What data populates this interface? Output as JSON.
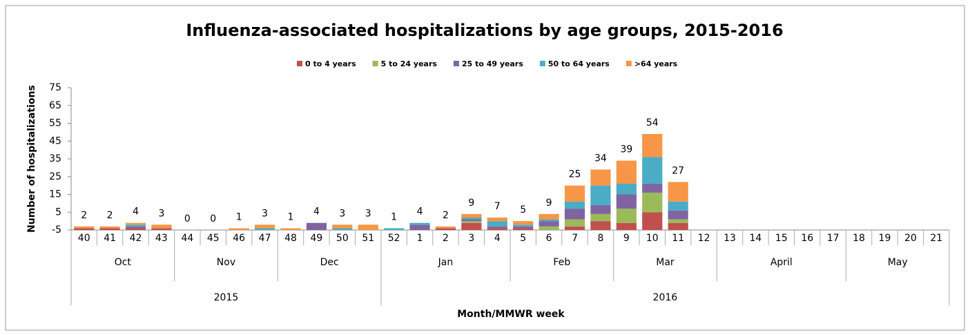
{
  "chart_data": {
    "type": "bar",
    "stacked": true,
    "title": "Influenza-associated hospitalizations by age groups, 2015-2016",
    "y_label": "Number of hospitalizations",
    "x_label": "Month/MMWR week",
    "categories": [
      "40",
      "41",
      "42",
      "43",
      "44",
      "45",
      "46",
      "47",
      "48",
      "49",
      "50",
      "51",
      "52",
      "1",
      "2",
      "3",
      "4",
      "5",
      "6",
      "7",
      "8",
      "9",
      "10",
      "11",
      "12",
      "13",
      "14",
      "15",
      "16",
      "17",
      "18",
      "19",
      "20",
      "21"
    ],
    "months": [
      "Oct",
      "Oct",
      "Oct",
      "Oct",
      "Nov",
      "Nov",
      "Nov",
      "Nov",
      "Dec",
      "Dec",
      "Dec",
      "Dec",
      "Jan",
      "Jan",
      "Jan",
      "Jan",
      "Jan",
      "Feb",
      "Feb",
      "Feb",
      "Feb",
      "Mar",
      "Mar",
      "Mar",
      "Mar",
      "April",
      "April",
      "April",
      "April",
      "April",
      "May",
      "May",
      "May",
      "May"
    ],
    "years": [
      "2015",
      "2015",
      "2015",
      "2015",
      "2015",
      "2015",
      "2015",
      "2015",
      "2015",
      "2015",
      "2015",
      "2015",
      "2016",
      "2016",
      "2016",
      "2016",
      "2016",
      "2016",
      "2016",
      "2016",
      "2016",
      "2016",
      "2016",
      "2016",
      "2016",
      "2016",
      "2016",
      "2016",
      "2016",
      "2016",
      "2016",
      "2016",
      "2016",
      "2016"
    ],
    "series": [
      {
        "name": "0 to 4 years",
        "color": "#c0504d",
        "values": [
          1,
          1,
          1,
          1,
          0,
          0,
          0,
          0,
          0,
          0,
          0,
          0,
          0,
          0,
          1,
          4,
          1,
          1,
          0,
          2,
          5,
          4,
          10,
          4,
          0,
          0,
          0,
          0,
          0,
          0,
          0,
          0,
          0,
          0
        ]
      },
      {
        "name": "5 to 24 years",
        "color": "#9bbb59",
        "values": [
          0,
          0,
          0,
          0,
          0,
          0,
          0,
          0,
          0,
          0,
          0,
          0,
          0,
          0,
          0,
          1,
          0,
          0,
          2,
          4,
          4,
          8,
          11,
          2,
          0,
          0,
          0,
          0,
          0,
          0,
          0,
          0,
          0,
          0
        ]
      },
      {
        "name": "25 to 49 years",
        "color": "#8064a2",
        "values": [
          0,
          0,
          1,
          0,
          0,
          0,
          0,
          0,
          0,
          4,
          0,
          0,
          0,
          3,
          0,
          1,
          1,
          1,
          3,
          6,
          5,
          8,
          5,
          5,
          0,
          0,
          0,
          0,
          0,
          0,
          0,
          0,
          0,
          0
        ]
      },
      {
        "name": "50 to 64 years",
        "color": "#4bacc6",
        "values": [
          0,
          0,
          1,
          0,
          0,
          0,
          0,
          1,
          0,
          0,
          1,
          0,
          1,
          1,
          0,
          1,
          3,
          1,
          1,
          4,
          11,
          6,
          15,
          5,
          0,
          0,
          0,
          0,
          0,
          0,
          0,
          0,
          0,
          0
        ]
      },
      {
        "name": ">64 years",
        "color": "#f79646",
        "values": [
          1,
          1,
          1,
          2,
          0,
          0,
          1,
          2,
          1,
          0,
          2,
          3,
          0,
          0,
          1,
          2,
          2,
          2,
          3,
          9,
          9,
          13,
          13,
          11,
          0,
          0,
          0,
          0,
          0,
          0,
          0,
          0,
          0,
          0
        ]
      }
    ],
    "totals": [
      2,
      2,
      4,
      3,
      0,
      0,
      1,
      3,
      1,
      4,
      3,
      3,
      1,
      4,
      2,
      9,
      7,
      5,
      9,
      25,
      34,
      39,
      54,
      27,
      null,
      null,
      null,
      null,
      null,
      null,
      null,
      null,
      null,
      null
    ],
    "ylim": [
      -5,
      75
    ],
    "yticks": [
      -5,
      5,
      15,
      25,
      35,
      45,
      55,
      65,
      75
    ],
    "grid": false
  }
}
